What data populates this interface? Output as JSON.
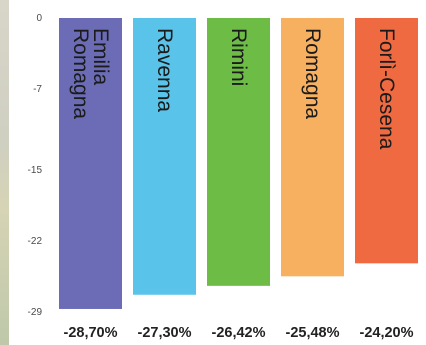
{
  "chart_data": {
    "type": "bar",
    "categories": [
      "Emilia Romagna",
      "Ravenna",
      "Rimini",
      "Romagna",
      "Forlì-Cesena"
    ],
    "category_lines": [
      [
        "Emilia",
        "Romagna"
      ],
      [
        "Ravenna"
      ],
      [
        "Rimini"
      ],
      [
        "Romagna"
      ],
      [
        "Forlì-Cesena"
      ]
    ],
    "values": [
      -28.7,
      -27.3,
      -26.42,
      -25.48,
      -24.2
    ],
    "value_labels": [
      "-28,70%",
      "-27,30%",
      "-26,42%",
      "-25,48%",
      "-24,20%"
    ],
    "colors": [
      "#6b6cb5",
      "#59c3ea",
      "#6dbc45",
      "#f7b060",
      "#ef6a40"
    ],
    "y_ticks": [
      0,
      -7,
      -15,
      -22,
      -29
    ],
    "y_tick_labels": [
      "0",
      "-7",
      "-15",
      "-22",
      "-29"
    ],
    "ylim": [
      -29,
      0
    ],
    "grid": false,
    "title": "",
    "xlabel": "",
    "ylabel": ""
  }
}
